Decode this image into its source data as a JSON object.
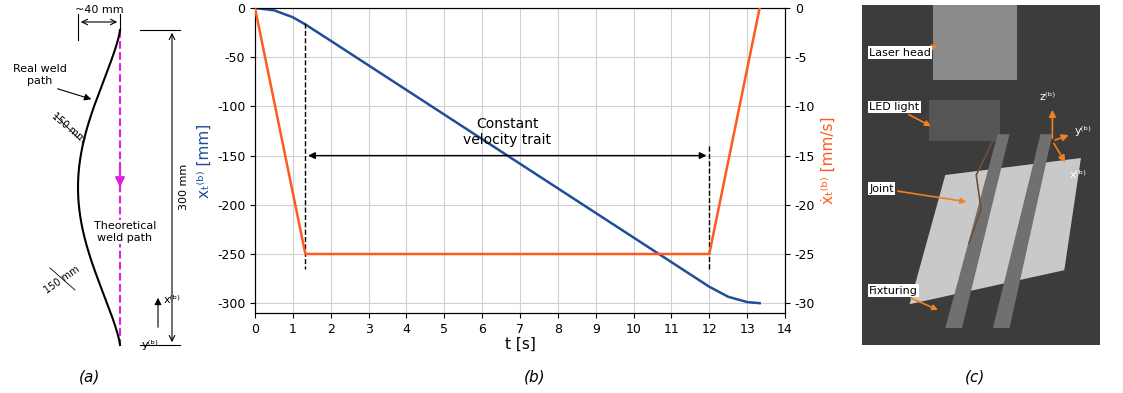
{
  "panel_labels": [
    "(a)",
    "(b)",
    "(c)"
  ],
  "diagram": {
    "width_label": "~40 mm",
    "real_path_label": "Real weld\npath",
    "theoretical_path_label": "Theoretical\nweld path",
    "length_label": "300 mm",
    "offset_labels": [
      "150 mm",
      "150 mm"
    ],
    "axes_labels": [
      "x⁽ᵇ⁾",
      "y⁽ᵇ⁾"
    ]
  },
  "chart_data": {
    "type": "line",
    "xlabel": "t [s]",
    "ylabel": "xₜ⁽ᵇ⁾ [mm]",
    "y2label": "ẋₜ⁽ᵇ⁾ [mm/s]",
    "xlim": [
      0,
      14
    ],
    "xticks": [
      0,
      1,
      2,
      3,
      4,
      5,
      6,
      7,
      8,
      9,
      10,
      11,
      12,
      13,
      14
    ],
    "ylim": [
      -310,
      0
    ],
    "yticks": [
      0,
      -50,
      -100,
      -150,
      -200,
      -250,
      -300
    ],
    "y2lim": [
      -31,
      0
    ],
    "y2ticks": [
      0,
      -5,
      -10,
      -15,
      -20,
      -25,
      -30
    ],
    "grid": true,
    "series": [
      {
        "color": "#1f4e9a",
        "x": [
          0,
          0.5,
          1,
          1.33,
          2,
          3,
          4,
          5,
          6,
          7,
          8,
          9,
          10,
          11,
          12,
          12.5,
          13,
          13.33
        ],
        "values": [
          0,
          -2.3,
          -9.4,
          -16.7,
          -33.3,
          -58.3,
          -83.3,
          -108.3,
          -133.3,
          -158.3,
          -183.3,
          -208.3,
          -233.3,
          -258.3,
          -283.3,
          -293.5,
          -298.9,
          -300
        ]
      },
      {
        "color": "#ff5a1f",
        "axis": "y2",
        "x": [
          0,
          1.33,
          12,
          13.33
        ],
        "values": [
          0,
          -25,
          -25,
          0
        ]
      }
    ],
    "annotations": [
      {
        "text": "Constant\nvelocity trait",
        "x": [
          1.33,
          12
        ],
        "y": -150,
        "guides": [
          [
            -15,
            -265
          ],
          [
            -140,
            -265
          ]
        ]
      }
    ]
  },
  "photo": {
    "labels": [
      "Laser head",
      "LED light",
      "Joint",
      "Fixturing"
    ],
    "axes_labels": [
      "z⁽ᵇ⁾",
      "y⁽ᵇ⁾",
      "x⁽ᵇ⁾"
    ]
  }
}
